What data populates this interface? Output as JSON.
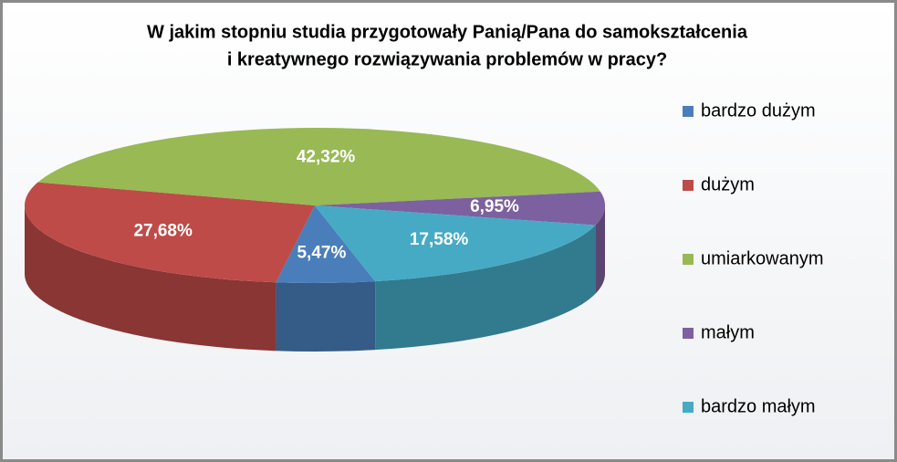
{
  "chart_data": {
    "type": "pie3d",
    "title": [
      "W jakim stopniu studia przygotowały Panią/Pana do samokształcenia",
      "i kreatywnego rozwiązywania problemów w pracy?"
    ],
    "categories": [
      "bardzo dużym",
      "dużym",
      "umiarkowanym",
      "małym",
      "bardzo małym"
    ],
    "values": [
      5.47,
      27.68,
      42.32,
      6.95,
      17.58
    ],
    "value_labels": [
      "5,47%",
      "27,68%",
      "42,32%",
      "6,95%",
      "17,58%"
    ],
    "colors": [
      "#4a7ebb",
      "#be4b48",
      "#98b954",
      "#7d60a0",
      "#46aac5"
    ],
    "legend": "right"
  }
}
